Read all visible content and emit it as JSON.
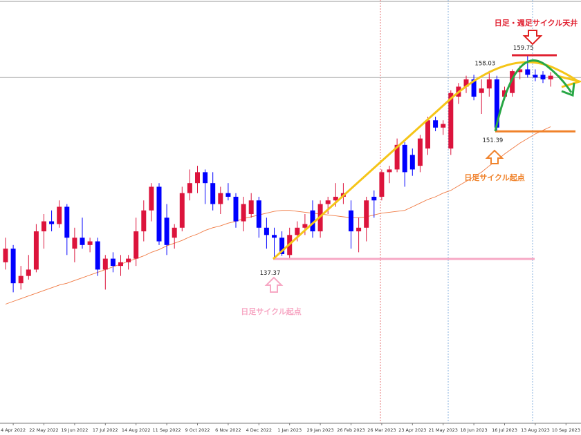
{
  "chart_data": {
    "type": "candlestick",
    "ylim": [
      119.54,
      165.82
    ],
    "up_color": "#dc143c",
    "down_color": "#0000ff",
    "price_line": 157.3,
    "x_labels": [
      "4 Apr 2022",
      "22 May 2022",
      "19 Jun 2022",
      "17 Jul 2022",
      "14 Aug 2022",
      "11 Sep 2022",
      "9 Oct 2022",
      "6 Nov 2022",
      "4 Dec 2022",
      "1 Jan 2023",
      "29 Jan 2023",
      "26 Feb 2023",
      "26 Mar 2023",
      "23 Apr 2023",
      "21 May 2023",
      "18 Jun 2023",
      "16 Jul 2023",
      "13 Aug 2023",
      "10 Sep 2023"
    ],
    "open": [
      137.0,
      138.5,
      134.7,
      135.5,
      136.2,
      140.4,
      141.5,
      141.2,
      143.1,
      138.5,
      139.7,
      138.9,
      139.3,
      136.2,
      137.4,
      136.6,
      137.0,
      137.4,
      140.4,
      142.7,
      145.3,
      141.9,
      139.7,
      140.8,
      144.6,
      145.7,
      146.9,
      145.7,
      143.4,
      144.6,
      144.2,
      141.5,
      142.3,
      143.8,
      140.8,
      140.0,
      139.7,
      137.8,
      140.0,
      140.8,
      142.7,
      140.4,
      143.4,
      143.8,
      144.2,
      142.7,
      140.4,
      140.8,
      144.2,
      144.2,
      146.9,
      147.2,
      149.9,
      148.8,
      147.6,
      149.5,
      152.6,
      151.8,
      149.5,
      155.2,
      156.3,
      157.1,
      155.6,
      156.1,
      157.1,
      155.2,
      155.6,
      157.9,
      158.2,
      157.6,
      157.6,
      157.1
    ],
    "high": [
      139.7,
      138.9,
      136.6,
      137.8,
      141.2,
      142.3,
      142.7,
      143.8,
      143.4,
      140.8,
      141.9,
      139.7,
      139.7,
      137.8,
      138.1,
      137.8,
      137.8,
      141.9,
      143.8,
      145.7,
      145.7,
      143.4,
      141.2,
      145.3,
      147.2,
      147.6,
      147.2,
      146.9,
      145.3,
      145.7,
      144.6,
      144.2,
      144.6,
      144.2,
      141.9,
      140.8,
      140.4,
      140.8,
      141.5,
      142.3,
      143.8,
      143.8,
      144.2,
      145.7,
      145.7,
      143.8,
      141.9,
      144.2,
      144.9,
      147.2,
      147.6,
      150.6,
      150.2,
      149.5,
      151.0,
      153.0,
      153.0,
      152.6,
      155.9,
      156.7,
      157.5,
      157.6,
      157.1,
      158.03,
      157.5,
      156.3,
      158.2,
      158.6,
      159.75,
      158.2,
      158.0,
      157.9
    ],
    "low": [
      136.2,
      133.7,
      134.0,
      135.1,
      135.9,
      138.5,
      140.4,
      140.8,
      137.8,
      137.0,
      138.5,
      138.1,
      135.5,
      134.0,
      135.9,
      135.5,
      136.2,
      136.6,
      139.3,
      141.5,
      138.9,
      137.8,
      138.5,
      140.4,
      143.8,
      144.6,
      143.4,
      142.7,
      142.3,
      143.8,
      140.8,
      140.4,
      141.9,
      139.7,
      138.5,
      137.37,
      137.7,
      137.4,
      139.3,
      140.0,
      139.7,
      139.7,
      142.3,
      143.1,
      143.4,
      138.5,
      138.1,
      139.3,
      141.9,
      143.8,
      145.7,
      146.9,
      145.3,
      146.5,
      146.9,
      148.8,
      151.4,
      151.0,
      148.8,
      154.4,
      155.6,
      154.8,
      153.3,
      155.2,
      151.39,
      154.8,
      155.2,
      157.1,
      157.3,
      156.9,
      156.7,
      156.3
    ],
    "close": [
      138.5,
      134.7,
      135.5,
      136.2,
      140.4,
      141.5,
      141.2,
      143.1,
      139.7,
      139.7,
      138.9,
      139.3,
      136.2,
      137.4,
      136.6,
      137.0,
      137.4,
      140.4,
      142.7,
      145.3,
      139.3,
      138.9,
      140.8,
      144.6,
      145.7,
      146.9,
      145.7,
      143.4,
      144.6,
      144.2,
      141.5,
      143.4,
      143.8,
      140.8,
      140.0,
      139.7,
      137.9,
      140.0,
      140.8,
      141.2,
      140.4,
      143.4,
      143.8,
      144.2,
      144.6,
      140.4,
      140.8,
      143.8,
      143.8,
      146.9,
      147.2,
      149.9,
      146.9,
      147.2,
      150.6,
      152.6,
      151.8,
      152.2,
      155.6,
      156.3,
      157.1,
      155.2,
      156.1,
      157.1,
      151.8,
      155.9,
      158.0,
      158.2,
      157.6,
      157.3,
      157.1,
      157.5
    ],
    "ma": {
      "color": "#f07840",
      "values": [
        132.4,
        132.7,
        133.0,
        133.3,
        133.6,
        133.9,
        134.2,
        134.5,
        134.7,
        135.0,
        135.3,
        135.6,
        135.9,
        136.2,
        136.5,
        136.8,
        137.1,
        137.4,
        137.7,
        138.1,
        138.4,
        138.8,
        139.1,
        139.4,
        139.8,
        140.1,
        140.5,
        140.8,
        141.0,
        141.3,
        141.5,
        141.8,
        142.0,
        142.2,
        142.4,
        142.6,
        142.7,
        142.7,
        142.6,
        142.5,
        142.4,
        142.3,
        142.2,
        142.1,
        142.0,
        141.9,
        141.9,
        142.0,
        142.2,
        142.4,
        142.5,
        142.6,
        142.7,
        143.1,
        143.5,
        143.9,
        144.2,
        144.6,
        144.9,
        145.4,
        145.9,
        146.4,
        146.9,
        147.6,
        148.2,
        148.9,
        149.5,
        150.1,
        150.6,
        151.1,
        151.5,
        151.9
      ]
    },
    "annotations": {
      "top": "日足・週足サイクル天井",
      "start_orange": "日足サイクル起点",
      "start_pink": "日足サイクル起点"
    }
  }
}
